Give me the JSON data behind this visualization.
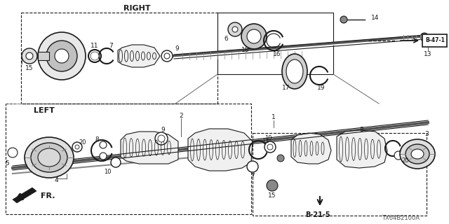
{
  "bg_color": "#ffffff",
  "line_color": "#1a1a1a",
  "right_label": "RIGHT",
  "left_label": "LEFT",
  "b471_label": "B-47-1",
  "b215_label": "B-21-5",
  "fr_label": "FR.",
  "diagram_code": "TX64B2100A"
}
